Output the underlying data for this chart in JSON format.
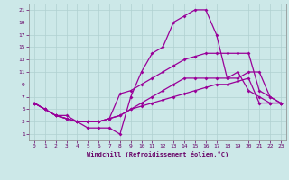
{
  "xlabel": "Windchill (Refroidissement éolien,°C)",
  "bg_color": "#cce8e8",
  "line_color": "#990099",
  "grid_color": "#b0d0d0",
  "xlim": [
    -0.5,
    23.5
  ],
  "ylim": [
    0,
    22
  ],
  "xticks": [
    0,
    1,
    2,
    3,
    4,
    5,
    6,
    7,
    8,
    9,
    10,
    11,
    12,
    13,
    14,
    15,
    16,
    17,
    18,
    19,
    20,
    21,
    22,
    23
  ],
  "yticks": [
    1,
    3,
    5,
    7,
    9,
    11,
    13,
    15,
    17,
    19,
    21
  ],
  "lines": [
    {
      "x": [
        0,
        1,
        2,
        3,
        4,
        5,
        6,
        7,
        8,
        9,
        10,
        11,
        12,
        13,
        14,
        15,
        16,
        17,
        18,
        19,
        20,
        21,
        22,
        23
      ],
      "y": [
        6,
        5,
        4,
        4,
        3,
        2,
        2,
        2,
        1,
        7,
        11,
        14,
        15,
        19,
        20,
        21,
        21,
        17,
        10,
        11,
        8,
        7,
        6,
        6
      ]
    },
    {
      "x": [
        0,
        1,
        2,
        3,
        4,
        5,
        6,
        7,
        8,
        9,
        10,
        11,
        12,
        13,
        14,
        15,
        16,
        17,
        18,
        19,
        20,
        21,
        22,
        23
      ],
      "y": [
        6,
        5,
        4,
        3.5,
        3,
        3,
        3,
        3.5,
        7.5,
        8,
        9,
        10,
        11,
        12,
        13,
        13.5,
        14,
        14,
        14,
        14,
        14,
        8,
        7,
        6
      ]
    },
    {
      "x": [
        0,
        1,
        2,
        3,
        4,
        5,
        6,
        7,
        8,
        9,
        10,
        11,
        12,
        13,
        14,
        15,
        16,
        17,
        18,
        19,
        20,
        21,
        22,
        23
      ],
      "y": [
        6,
        5,
        4,
        3.5,
        3,
        3,
        3,
        3.5,
        4,
        5,
        6,
        7,
        8,
        9,
        10,
        10,
        10,
        10,
        10,
        10,
        11,
        11,
        7,
        6
      ]
    },
    {
      "x": [
        0,
        1,
        2,
        3,
        4,
        5,
        6,
        7,
        8,
        9,
        10,
        11,
        12,
        13,
        14,
        15,
        16,
        17,
        18,
        19,
        20,
        21,
        22,
        23
      ],
      "y": [
        6,
        5,
        4,
        3.5,
        3,
        3,
        3,
        3.5,
        4,
        5,
        5.5,
        6,
        6.5,
        7,
        7.5,
        8,
        8.5,
        9,
        9,
        9.5,
        10,
        6,
        6,
        6
      ]
    }
  ]
}
